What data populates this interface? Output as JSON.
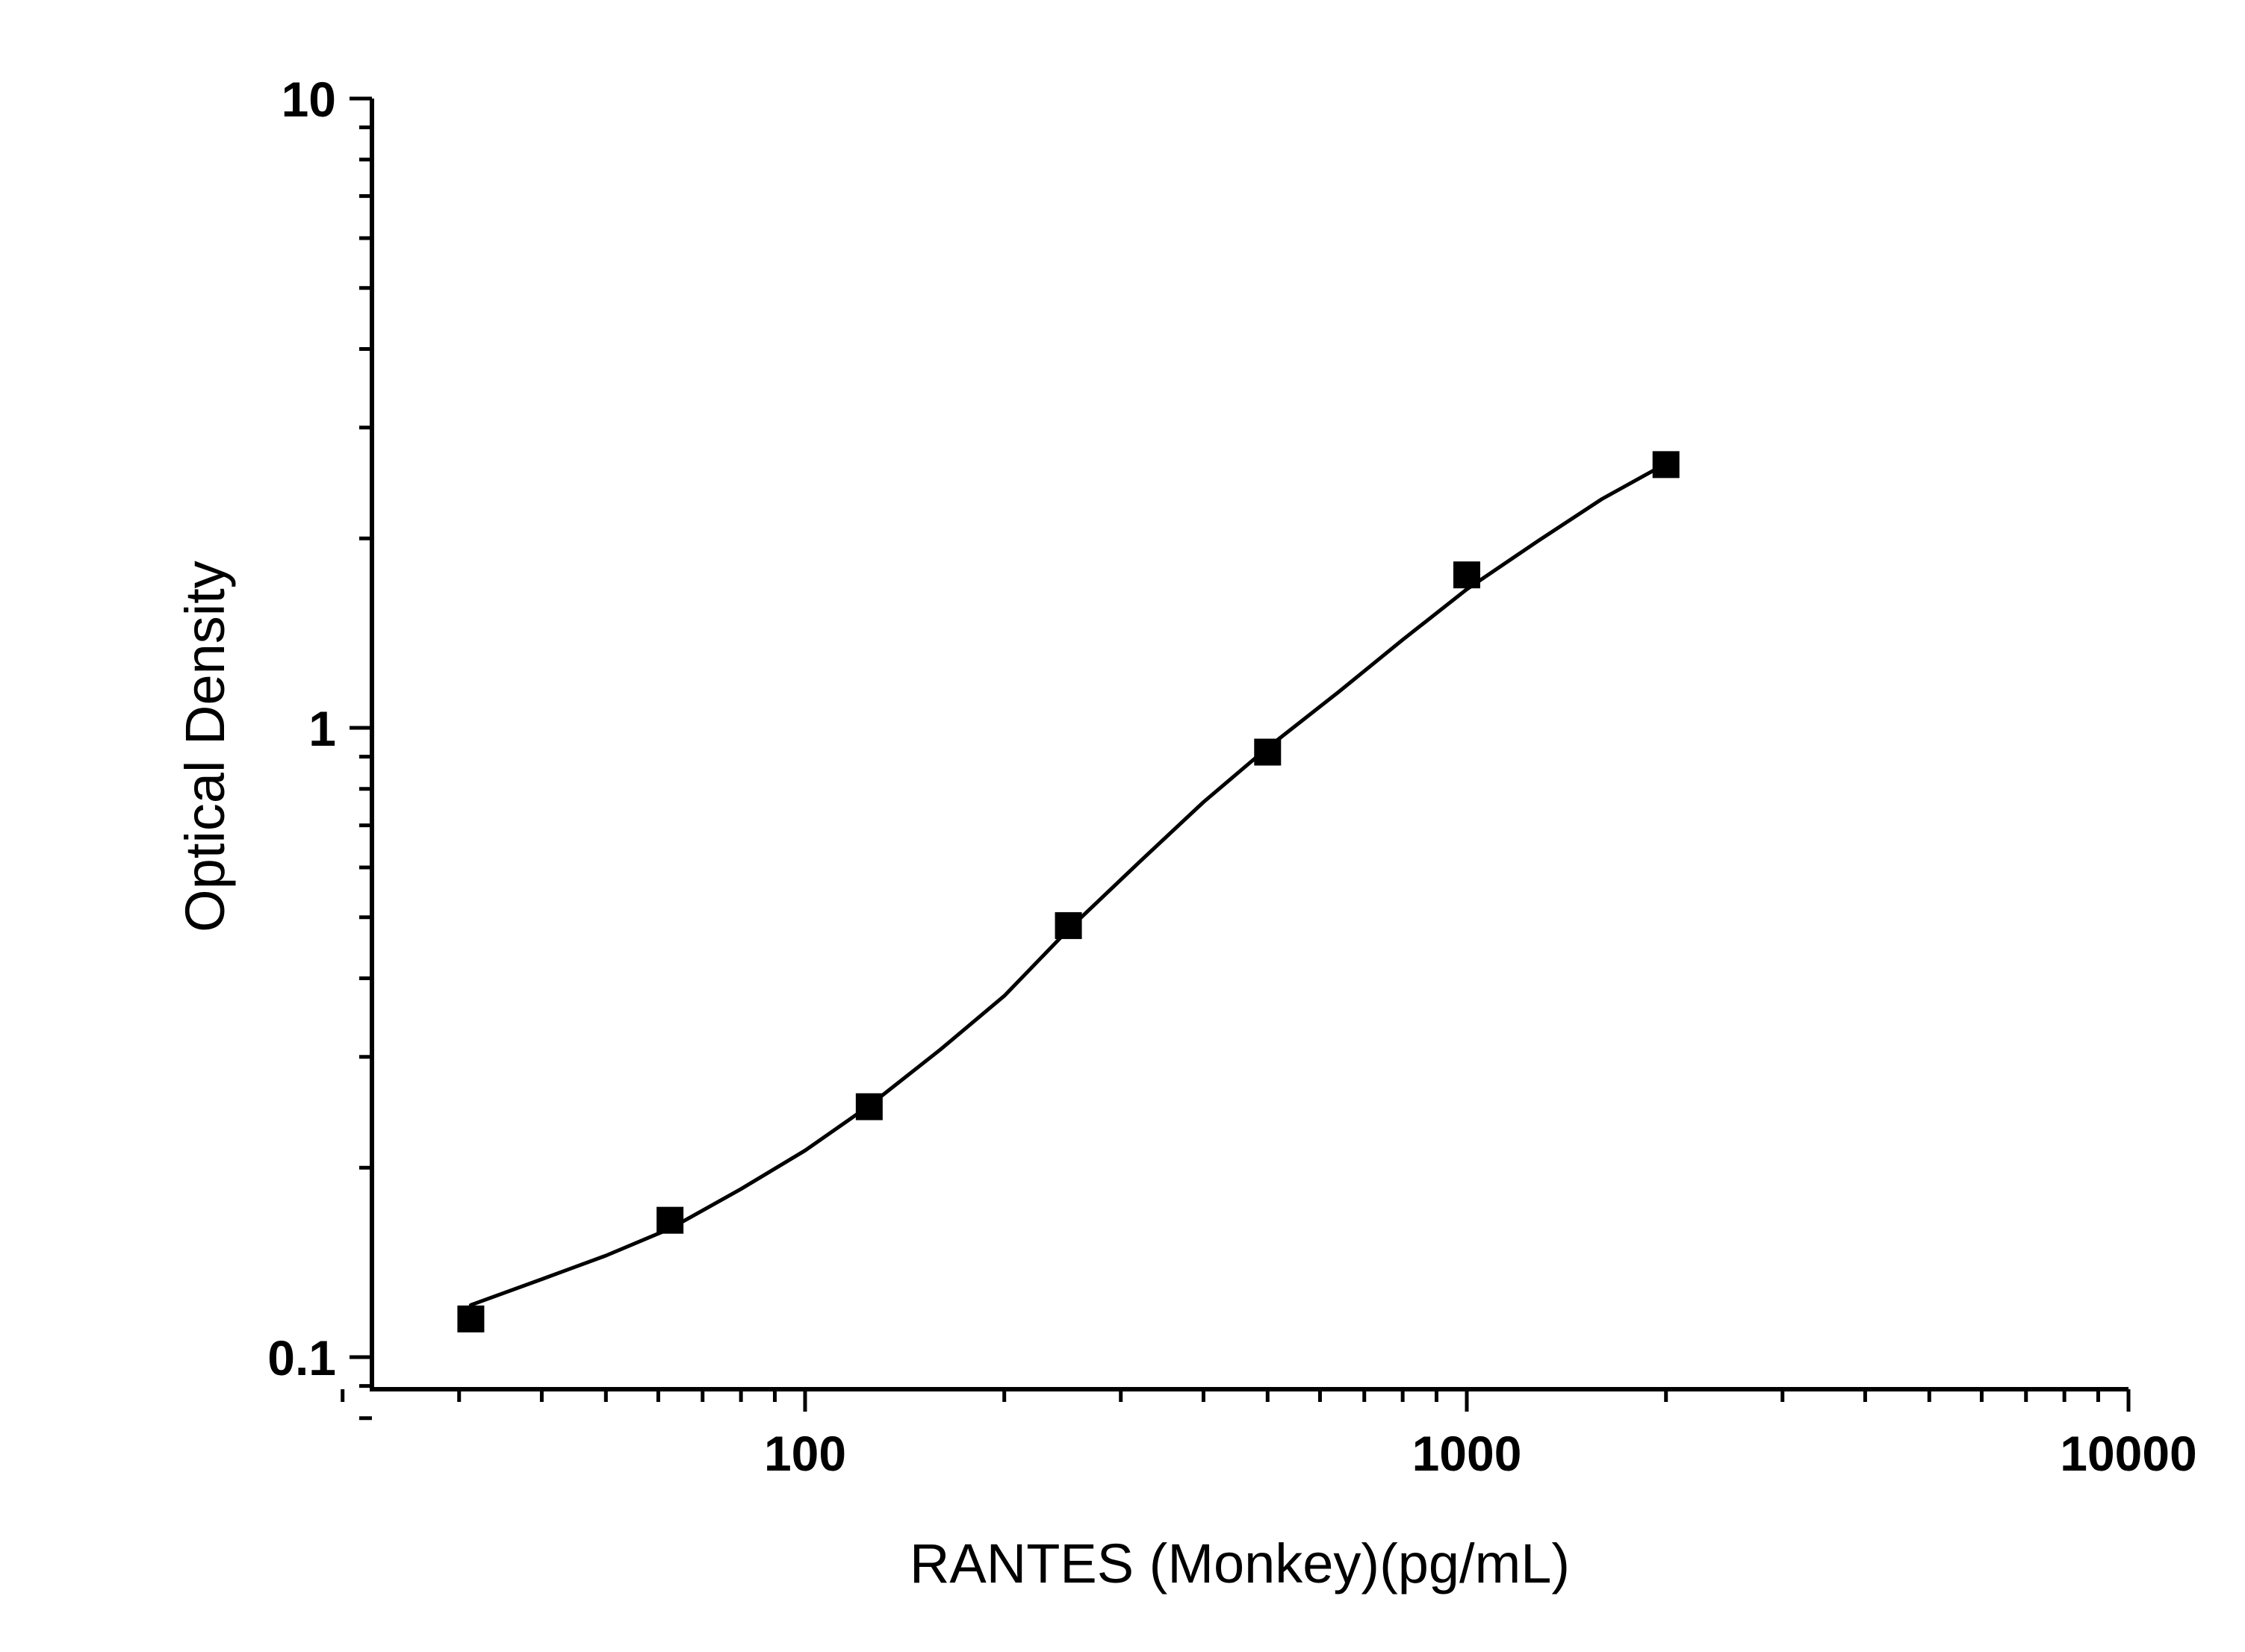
{
  "chart_data": {
    "type": "scatter",
    "title": "",
    "xlabel": "RANTES (Monkey)(pg/mL)",
    "ylabel": "Optical Density",
    "x_scale": "log",
    "y_scale": "log",
    "xlim": [
      20,
      10000
    ],
    "ylim": [
      0.08,
      10
    ],
    "x_ticks": [
      100,
      1000,
      10000
    ],
    "x_tick_labels": [
      "100",
      "1000",
      "10000"
    ],
    "y_ticks": [
      0.1,
      1,
      10
    ],
    "y_tick_labels": [
      "0.1",
      "1",
      "10"
    ],
    "grid": false,
    "legend": "none",
    "series": [
      {
        "marker": "square",
        "color": "#000000",
        "x": [
          31.25,
          62.5,
          125,
          250,
          500,
          1000,
          2000
        ],
        "y": [
          0.115,
          0.165,
          0.25,
          0.485,
          0.915,
          1.75,
          2.62
        ]
      }
    ],
    "fit_curve": {
      "type": "line",
      "color": "#000000",
      "x": [
        31.25,
        40,
        50,
        62.5,
        80,
        100,
        125,
        160,
        200,
        250,
        320,
        400,
        500,
        640,
        800,
        1000,
        1280,
        1600,
        2000
      ],
      "y": [
        0.121,
        0.133,
        0.145,
        0.16,
        0.185,
        0.213,
        0.251,
        0.308,
        0.375,
        0.478,
        0.612,
        0.762,
        0.93,
        1.14,
        1.38,
        1.66,
        1.98,
        2.31,
        2.63
      ]
    }
  }
}
